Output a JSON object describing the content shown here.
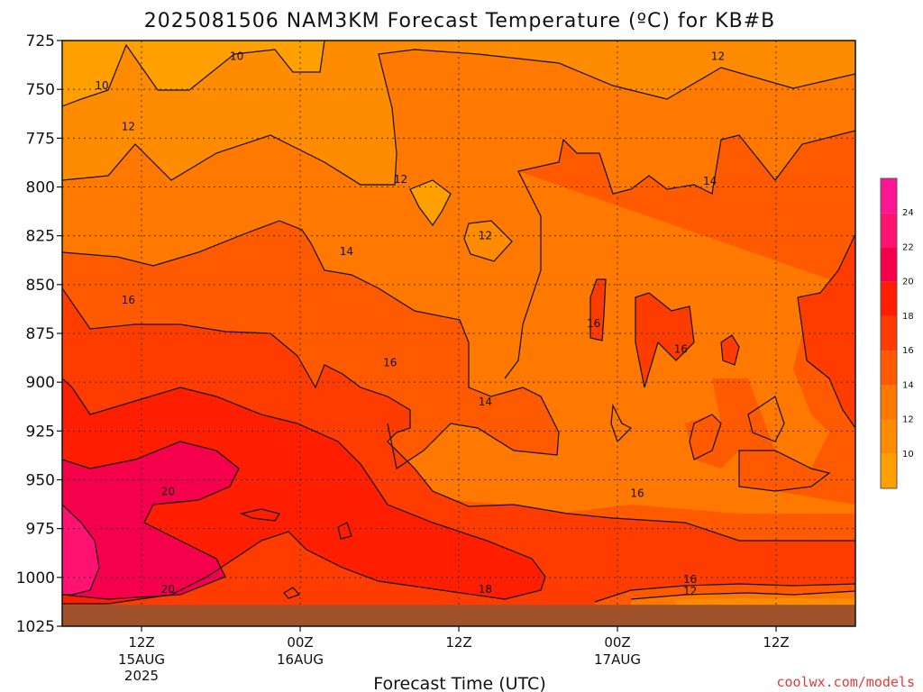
{
  "chart_data": {
    "type": "heatmap",
    "title": "2025081506 NAM3KM Forecast Temperature (ºC) for KB#B",
    "xlabel": "Forecast Time (UTC)",
    "ylabel": "",
    "y_axis": {
      "ticks": [
        725,
        750,
        775,
        800,
        825,
        850,
        875,
        900,
        925,
        950,
        975,
        1000,
        1025
      ],
      "range": [
        725,
        1025
      ],
      "inverted": true,
      "grid": true
    },
    "x_axis": {
      "ticks": [
        {
          "hour": 6,
          "label": "12Z",
          "sub1": "15AUG",
          "sub2": "2025"
        },
        {
          "hour": 18,
          "label": "00Z",
          "sub1": "16AUG",
          "sub2": ""
        },
        {
          "hour": 30,
          "label": "12Z",
          "sub1": "",
          "sub2": ""
        },
        {
          "hour": 42,
          "label": "00Z",
          "sub1": "17AUG",
          "sub2": ""
        },
        {
          "hour": 54,
          "label": "12Z",
          "sub1": "",
          "sub2": ""
        }
      ],
      "range": [
        0,
        60
      ],
      "grid": true
    },
    "colorbar": {
      "levels": [
        8,
        10,
        12,
        14,
        16,
        18,
        20,
        22,
        24,
        26
      ],
      "labels": [
        10,
        12,
        14,
        16,
        18,
        20,
        22,
        24
      ],
      "colors": [
        "#ffa000",
        "#ff8c00",
        "#ff7800",
        "#ff5a00",
        "#ff3c00",
        "#ff1e00",
        "#f5004a",
        "#ff1270",
        "#ff1494"
      ],
      "placement": "right"
    },
    "contour_labels": [
      {
        "value": "10",
        "t": 13.2,
        "p": 733
      },
      {
        "value": "10",
        "t": 3.0,
        "p": 748
      },
      {
        "value": "12",
        "t": 5.0,
        "p": 769
      },
      {
        "value": "12",
        "t": 25.6,
        "p": 796
      },
      {
        "value": "12",
        "t": 32.0,
        "p": 825
      },
      {
        "value": "12",
        "t": 49.6,
        "p": 733
      },
      {
        "value": "14",
        "t": 21.5,
        "p": 833
      },
      {
        "value": "14",
        "t": 32.0,
        "p": 910
      },
      {
        "value": "14",
        "t": 49.0,
        "p": 797
      },
      {
        "value": "16",
        "t": 5.0,
        "p": 858
      },
      {
        "value": "16",
        "t": 24.8,
        "p": 890
      },
      {
        "value": "16",
        "t": 40.2,
        "p": 870
      },
      {
        "value": "16",
        "t": 46.8,
        "p": 883
      },
      {
        "value": "16",
        "t": 43.5,
        "p": 957
      },
      {
        "value": "16",
        "t": 47.5,
        "p": 1001
      },
      {
        "value": "18",
        "t": 32.0,
        "p": 1006
      },
      {
        "value": "20",
        "t": 8.0,
        "p": 956
      },
      {
        "value": "20",
        "t": 8.0,
        "p": 1006
      },
      {
        "value": "12",
        "t": 47.5,
        "p": 1007
      }
    ],
    "surface_pressure": 1014
  },
  "credit": "coolwx.com/models"
}
